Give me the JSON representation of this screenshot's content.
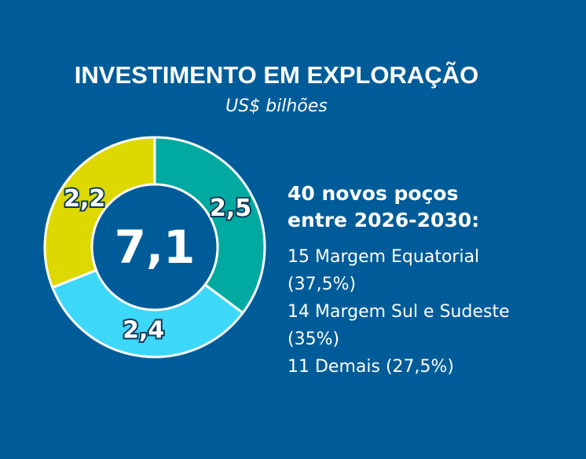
{
  "chart_data": {
    "type": "donut",
    "title": "INVESTIMENTO EM EXPLORAÇÃO",
    "subtitle": "US$ bilhões",
    "values": [
      2.5,
      2.4,
      2.2
    ],
    "value_labels": [
      "2,5",
      "2,4",
      "2,2"
    ],
    "colors": [
      "#00aaa0",
      "#3dd8f8",
      "#dcd800"
    ],
    "center_text": "7,1",
    "notes": {
      "heading": [
        "40 novos poços",
        "entre 2026-2030:"
      ],
      "items": [
        "15 Margem Equatorial (37,5%)",
        "14 Margem Sul e Sudeste (35%)",
        "11 Demais (27,5%)"
      ]
    }
  }
}
